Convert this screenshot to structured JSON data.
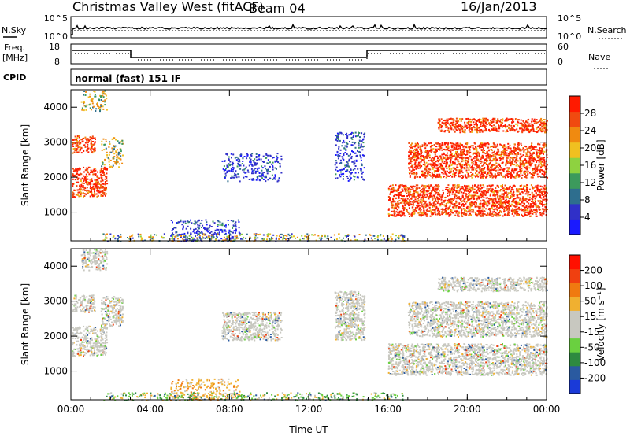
{
  "header": {
    "title": "Christmas Valley West (fitACF)",
    "beam": "Beam 04",
    "date": "16/Jan/2013",
    "cpid_label": "CPID",
    "cpid_value": "normal (fast) 151 IF"
  },
  "top_panels": {
    "nsky_label": "N.Sky",
    "nsearch_label": "N.Search",
    "noise_ticks": [
      "10^5",
      "10^0"
    ],
    "freq_label": [
      "Freq.",
      "[MHz]"
    ],
    "freq_ticks": [
      "18",
      "8"
    ],
    "nave_label": "Nave",
    "nave_ticks": [
      "60",
      "0"
    ]
  },
  "chart_data": [
    {
      "type": "heatmap",
      "parameter": "Power",
      "ylabel": "Slant Range [km]",
      "ylim": [
        180,
        4500
      ],
      "y_ticks": [
        1000,
        2000,
        3000,
        4000
      ],
      "xlim": [
        0,
        24
      ],
      "x_ticks": [
        "00:00",
        "04:00",
        "08:00",
        "12:00",
        "16:00",
        "20:00",
        "00:00"
      ],
      "colorbar": {
        "label": "Power [dB]",
        "ticks": [
          4,
          8,
          12,
          16,
          20,
          24,
          28
        ],
        "colors": [
          "#1a1aff",
          "#3030c8",
          "#2e6e8e",
          "#3c9a5c",
          "#8ed240",
          "#f0c020",
          "#f08a10",
          "#f04a10",
          "#ff1a00"
        ]
      },
      "regions": [
        {
          "t0": 0.05,
          "t1": 1.8,
          "r0": 1450,
          "r1": 2300,
          "level": "high"
        },
        {
          "t0": 1.5,
          "t1": 2.6,
          "r0": 2300,
          "r1": 3150,
          "level": "mid"
        },
        {
          "t0": 0.05,
          "t1": 1.2,
          "r0": 2700,
          "r1": 3200,
          "level": "high"
        },
        {
          "t0": 0.5,
          "t1": 1.8,
          "r0": 3900,
          "r1": 4500,
          "level": "mid"
        },
        {
          "t0": 7.6,
          "t1": 10.6,
          "r0": 1900,
          "r1": 2700,
          "level": "low"
        },
        {
          "t0": 13.3,
          "t1": 14.8,
          "r0": 1900,
          "r1": 3300,
          "level": "low"
        },
        {
          "t0": 5.0,
          "t1": 8.5,
          "r0": 180,
          "r1": 800,
          "level": "low"
        },
        {
          "t0": 1.6,
          "t1": 16.8,
          "r0": 180,
          "r1": 400,
          "level": "mixed"
        },
        {
          "t0": 16.0,
          "t1": 24.0,
          "r0": 900,
          "r1": 1800,
          "level": "high"
        },
        {
          "t0": 17.0,
          "t1": 24.0,
          "r0": 2000,
          "r1": 3000,
          "level": "high"
        },
        {
          "t0": 18.5,
          "t1": 24.0,
          "r0": 3300,
          "r1": 3700,
          "level": "high"
        }
      ]
    },
    {
      "type": "heatmap",
      "parameter": "Velocity",
      "ylabel": "Slant Range [km]",
      "ylim": [
        180,
        4500
      ],
      "y_ticks": [
        1000,
        2000,
        3000,
        4000
      ],
      "xlim": [
        0,
        24
      ],
      "x_ticks": [
        "00:00",
        "04:00",
        "08:00",
        "12:00",
        "16:00",
        "20:00",
        "00:00"
      ],
      "xlabel": "Time UT",
      "colorbar": {
        "label": "Velocity [m s⁻¹]",
        "ticks": [
          "200",
          "100",
          "50",
          "15",
          "-15",
          "-50",
          "-100",
          "-200"
        ],
        "colors": [
          "#1a3ad8",
          "#2a5aa0",
          "#2e8a40",
          "#6ad040",
          "#c8c8c0",
          "#c8c8c0",
          "#f0b030",
          "#f07a10",
          "#f04010",
          "#ff1000"
        ]
      },
      "regions": [
        {
          "t0": 0.05,
          "t1": 1.8,
          "r0": 1450,
          "r1": 2300,
          "level": "ground"
        },
        {
          "t0": 1.5,
          "t1": 2.6,
          "r0": 2300,
          "r1": 3150,
          "level": "ground"
        },
        {
          "t0": 0.05,
          "t1": 1.2,
          "r0": 2700,
          "r1": 3200,
          "level": "ground"
        },
        {
          "t0": 0.5,
          "t1": 1.8,
          "r0": 3900,
          "r1": 4500,
          "level": "ground"
        },
        {
          "t0": 7.6,
          "t1": 10.6,
          "r0": 1900,
          "r1": 2700,
          "level": "ground"
        },
        {
          "t0": 13.3,
          "t1": 14.8,
          "r0": 1900,
          "r1": 3300,
          "level": "ground"
        },
        {
          "t0": 5.0,
          "t1": 8.5,
          "r0": 180,
          "r1": 800,
          "level": "orange"
        },
        {
          "t0": 1.6,
          "t1": 16.8,
          "r0": 180,
          "r1": 400,
          "level": "mixed"
        },
        {
          "t0": 16.0,
          "t1": 24.0,
          "r0": 900,
          "r1": 1800,
          "level": "ground"
        },
        {
          "t0": 17.0,
          "t1": 24.0,
          "r0": 2000,
          "r1": 3000,
          "level": "ground"
        },
        {
          "t0": 18.5,
          "t1": 24.0,
          "r0": 3300,
          "r1": 3700,
          "level": "ground"
        }
      ]
    }
  ]
}
